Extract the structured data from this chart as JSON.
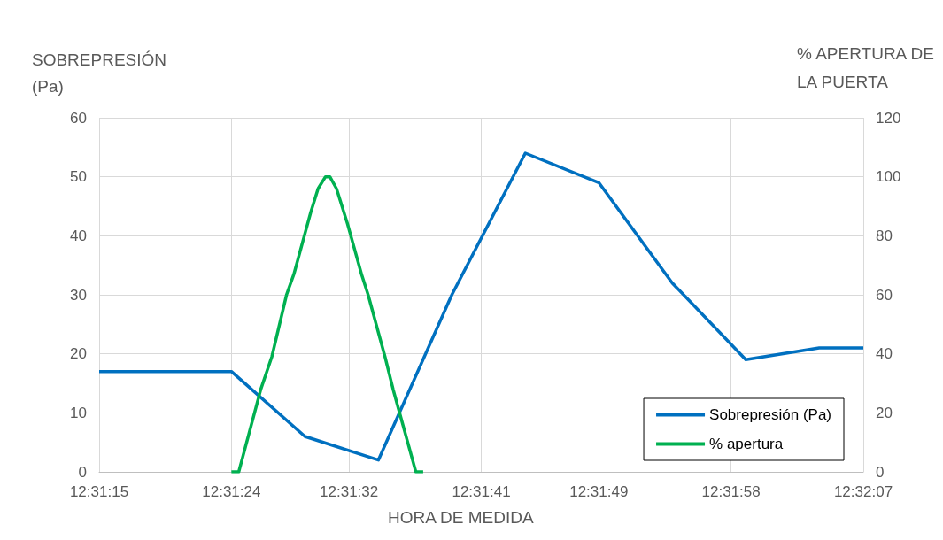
{
  "chart_data": {
    "type": "line",
    "xlabel": "HORA DE MEDIDA",
    "ylabel": "SOBREPRESIÓN\n(Pa)",
    "y2label": "% APERTURA DE\nLA PUERTA",
    "xlim": [
      12.520833,
      12.535278
    ],
    "xticks": [
      {
        "value": 12.520833,
        "label": "12:31:15"
      },
      {
        "value": 12.523333,
        "label": "12:31:24"
      },
      {
        "value": 12.525556,
        "label": "12:31:32"
      },
      {
        "value": 12.528056,
        "label": "12:31:41"
      },
      {
        "value": 12.530278,
        "label": "12:31:49"
      },
      {
        "value": 12.532778,
        "label": "12:31:58"
      },
      {
        "value": 12.535278,
        "label": "12:32:07"
      }
    ],
    "ylim": [
      0,
      60
    ],
    "yticks": [
      0,
      10,
      20,
      30,
      40,
      50,
      60
    ],
    "y2lim": [
      0,
      120
    ],
    "y2ticks": [
      0,
      20,
      40,
      60,
      80,
      100,
      120
    ],
    "grid": true,
    "legend": "bottom right",
    "marker": "none",
    "line_style": "solid",
    "series": [
      {
        "name": "Sobrepresión (Pa)",
        "color": "#0070c0",
        "x": [
          12.520833,
          12.523333,
          12.524722,
          12.526111,
          12.5275,
          12.528889,
          12.530278,
          12.531667,
          12.533056,
          12.534444,
          12.535278
        ],
        "values": [
          17,
          17,
          6,
          2,
          30,
          54,
          49,
          32,
          19,
          21,
          21
        ]
      },
      {
        "name": "% apertura",
        "color": "#00b050",
        "axis": "y2",
        "x": [
          12.523333,
          12.523472,
          12.523889,
          12.524097,
          12.524375,
          12.524514,
          12.524833,
          12.524972,
          12.525111,
          12.525194,
          12.525319,
          12.525528,
          12.525792,
          12.525917,
          12.526236,
          12.526389,
          12.526819,
          12.526958
        ],
        "values": [
          0,
          0,
          28,
          39,
          60,
          67,
          88,
          96,
          100,
          100,
          96,
          84,
          67,
          60,
          39,
          28,
          0,
          0
        ]
      }
    ]
  }
}
